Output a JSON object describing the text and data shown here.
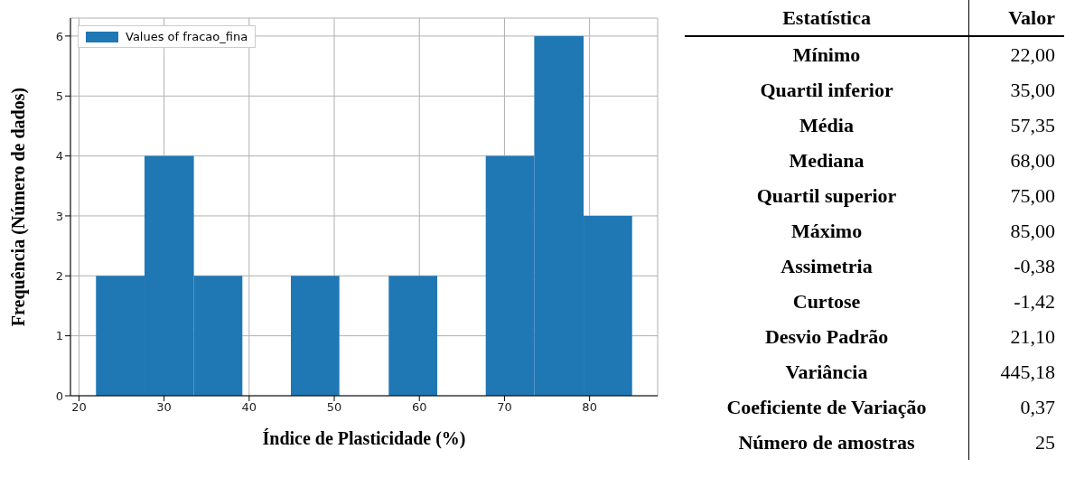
{
  "chart_data": [
    {
      "type": "histogram",
      "xlabel": "Índice de Plasticidade (%)",
      "ylabel": "Frequência (Número de dados)",
      "bins": [
        22,
        27.7,
        33.5,
        39.2,
        44.9,
        50.6,
        56.4,
        62.1,
        67.8,
        73.5,
        79.3,
        85
      ],
      "series": [
        {
          "name": "Values of fracao_fina",
          "color": "#1f77b4",
          "values": [
            2,
            4,
            2,
            0,
            2,
            0,
            2,
            0,
            4,
            6,
            3
          ]
        }
      ],
      "xlim": [
        19,
        88
      ],
      "xticks": [
        20,
        30,
        40,
        50,
        60,
        70,
        80
      ],
      "ylim": [
        0,
        6.3
      ],
      "yticks": [
        0,
        1,
        2,
        3,
        4,
        5,
        6
      ],
      "grid": true,
      "legend": "top left"
    },
    {
      "type": "other",
      "annotations": [
        "Estatística",
        "Valor"
      ],
      "categories": [
        "Mínimo",
        "Quartil inferior",
        "Média",
        "Mediana",
        "Quartil superior",
        "Máximo",
        "Assimetria",
        "Curtose",
        "Desvio Padrão",
        "Variância",
        "Coeficiente de Variação",
        "Número de amostras"
      ],
      "value_labels": [
        "22,00",
        "35,00",
        "57,35",
        "68,00",
        "75,00",
        "85,00",
        "-0,38",
        "-1,42",
        "21,10",
        "445,18",
        "0,37",
        "25"
      ]
    }
  ]
}
